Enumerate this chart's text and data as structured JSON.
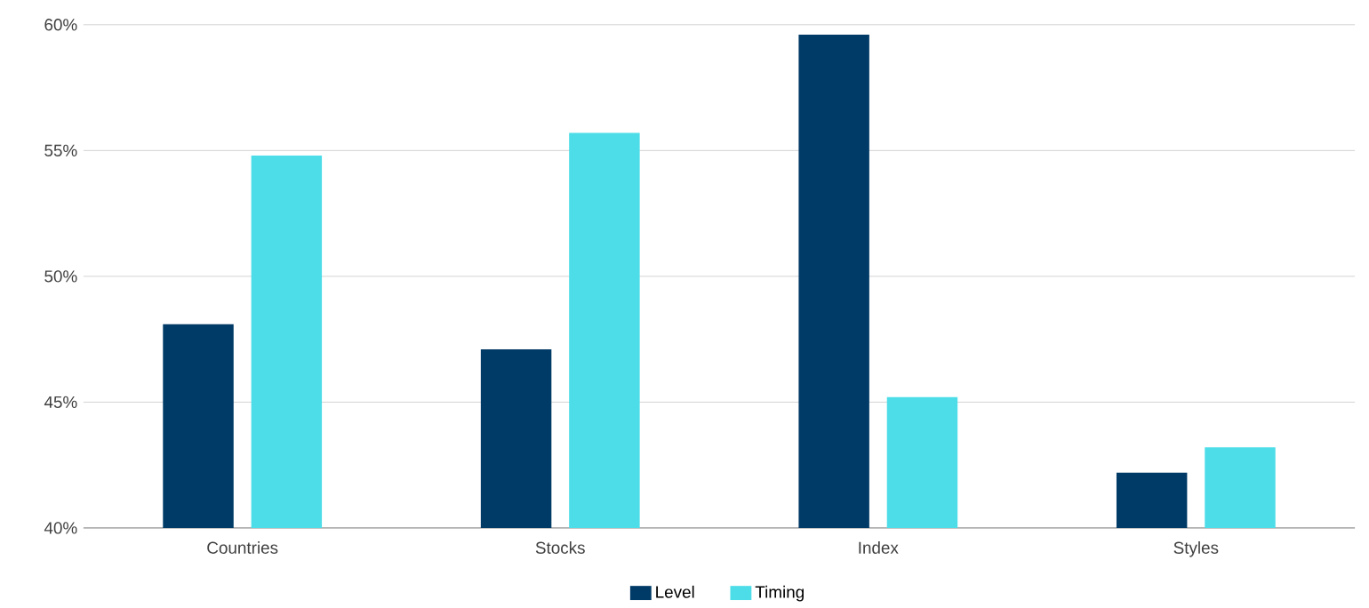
{
  "chart_data": {
    "type": "bar",
    "categories": [
      "Countries",
      "Stocks",
      "Index",
      "Styles"
    ],
    "series": [
      {
        "name": "Level",
        "color": "#003a66",
        "values": [
          48.1,
          47.1,
          59.6,
          42.2
        ]
      },
      {
        "name": "Timing",
        "color": "#4ddde8",
        "values": [
          54.8,
          55.7,
          45.2,
          43.2
        ]
      }
    ],
    "ylim": [
      40,
      60
    ],
    "yticks": [
      {
        "value": 40,
        "label": "40%"
      },
      {
        "value": 45,
        "label": "45%"
      },
      {
        "value": 50,
        "label": "50%"
      },
      {
        "value": 55,
        "label": "55%"
      },
      {
        "value": 60,
        "label": "60%"
      }
    ],
    "grid": "y",
    "legend": "bottom"
  }
}
